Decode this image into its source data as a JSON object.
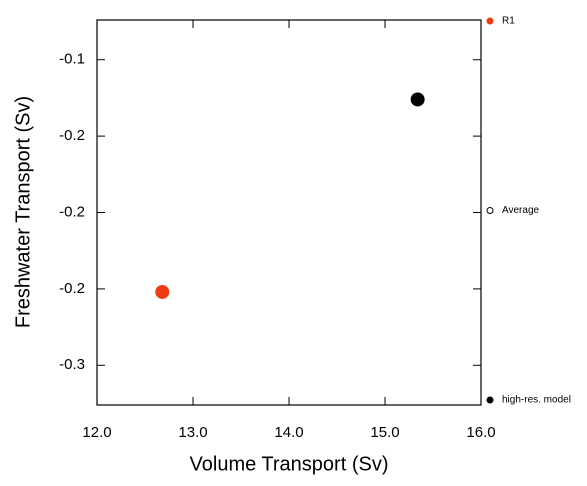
{
  "chart_data": {
    "type": "scatter",
    "xlabel": "Volume Transport (Sv)",
    "ylabel": "Freshwater Transport (Sv)",
    "xlim": [
      12.0,
      16.0
    ],
    "xticks": [
      {
        "value": 12,
        "label": "12.0"
      },
      {
        "value": 13,
        "label": "13.0"
      },
      {
        "value": 14,
        "label": "14.0"
      },
      {
        "value": 15,
        "label": "15.0"
      },
      {
        "value": 16,
        "label": "16.0"
      }
    ],
    "ylim": [
      -0.326,
      -0.074
    ],
    "yticks": [
      {
        "value": -0.1,
        "label": "-0.1"
      },
      {
        "value": -0.15,
        "label": "-0.2"
      },
      {
        "value": -0.2,
        "label": "-0.2"
      },
      {
        "value": -0.25,
        "label": "-0.2"
      },
      {
        "value": -0.3,
        "label": "-0.3"
      }
    ],
    "grid": false,
    "legend": "right",
    "series": [
      {
        "name": "R1",
        "color": "#f03c14",
        "filled": true,
        "x": [
          12.68
        ],
        "values": [
          -0.252
        ]
      },
      {
        "name": "Average",
        "color": "#000000",
        "filled": false,
        "x": [],
        "values": []
      },
      {
        "name": "high-res. model",
        "color": "#000000",
        "filled": true,
        "x": [
          15.34
        ],
        "values": [
          -0.126
        ]
      }
    ]
  }
}
